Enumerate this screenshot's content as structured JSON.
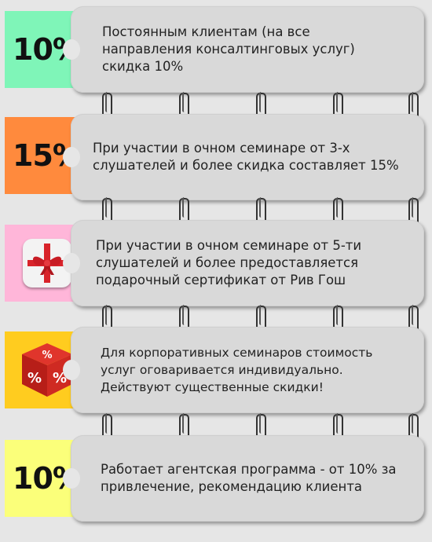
{
  "items": [
    {
      "badge": "10%",
      "badge_color": "#7ff5b8",
      "text": "Постоянным клиентам (на все\nнаправления консалтинговых услуг)\nскидка 10%"
    },
    {
      "badge": "15%",
      "badge_color": "#ff8a3d",
      "text": "При участии в очном семинаре от 3-х\nслушателей и более скидка составляет 15%"
    },
    {
      "badge": "",
      "badge_icon": "gift-icon",
      "badge_color": "#ffb6d9",
      "text": "При участии в очном семинаре от 5-ти\nслушателей и более предоставляется\nподарочный сертификат от Рив Гош"
    },
    {
      "badge": "",
      "badge_icon": "percent-dice-icon",
      "badge_color": "#ffcc1f",
      "text": "Для корпоративных семинаров стоимость\nуслуг оговаривается индивидуально.\nДействуют существенные скидки!"
    },
    {
      "badge": "10%",
      "badge_color": "#fbff7a",
      "text": "Работает агентская программа - от 10% за\nпривлечение, рекомендацию клиента"
    }
  ]
}
